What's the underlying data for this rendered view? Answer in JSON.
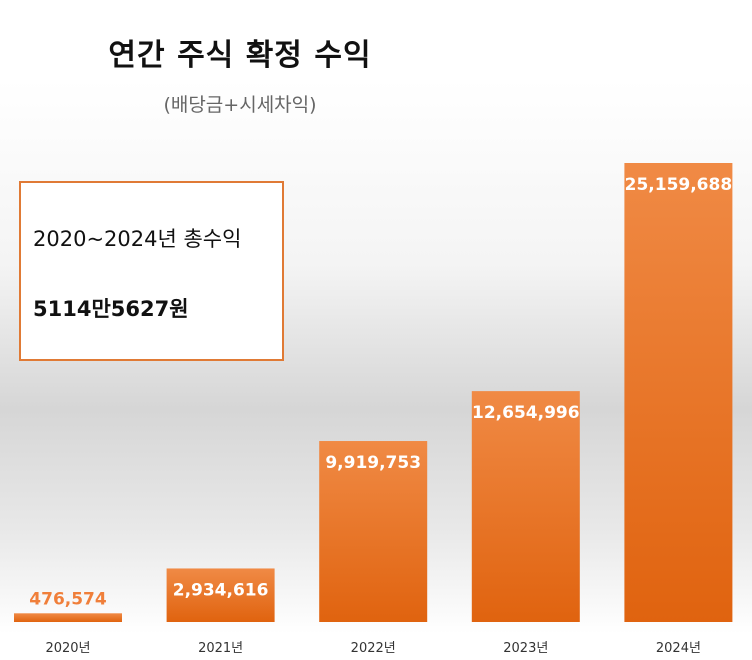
{
  "title": "연간 주식 확정 수익",
  "subtitle": "(배당금+시세차익)",
  "summary": {
    "label": "2020~2024년 총수익",
    "value": "5114만5627원"
  },
  "colors": {
    "bar_top": "#f08a45",
    "bar_bottom": "#e0630f",
    "label_outside": "#f07f3a",
    "label_inside": "#ffffff",
    "axis_label": "#333333"
  },
  "chart_data": {
    "type": "bar",
    "categories": [
      "2020년",
      "2021년",
      "2022년",
      "2023년",
      "2024년"
    ],
    "values": [
      476574,
      2934616,
      9919753,
      12654996,
      25159688
    ],
    "data_labels": [
      "476,574",
      "2,934,616",
      "9,919,753",
      "12,654,996",
      "25,159,688"
    ],
    "title": "연간 주식 확정 수익",
    "subtitle": "(배당금+시세차익)",
    "ylim": [
      0,
      25159688
    ],
    "grid": false,
    "legend": "none"
  }
}
